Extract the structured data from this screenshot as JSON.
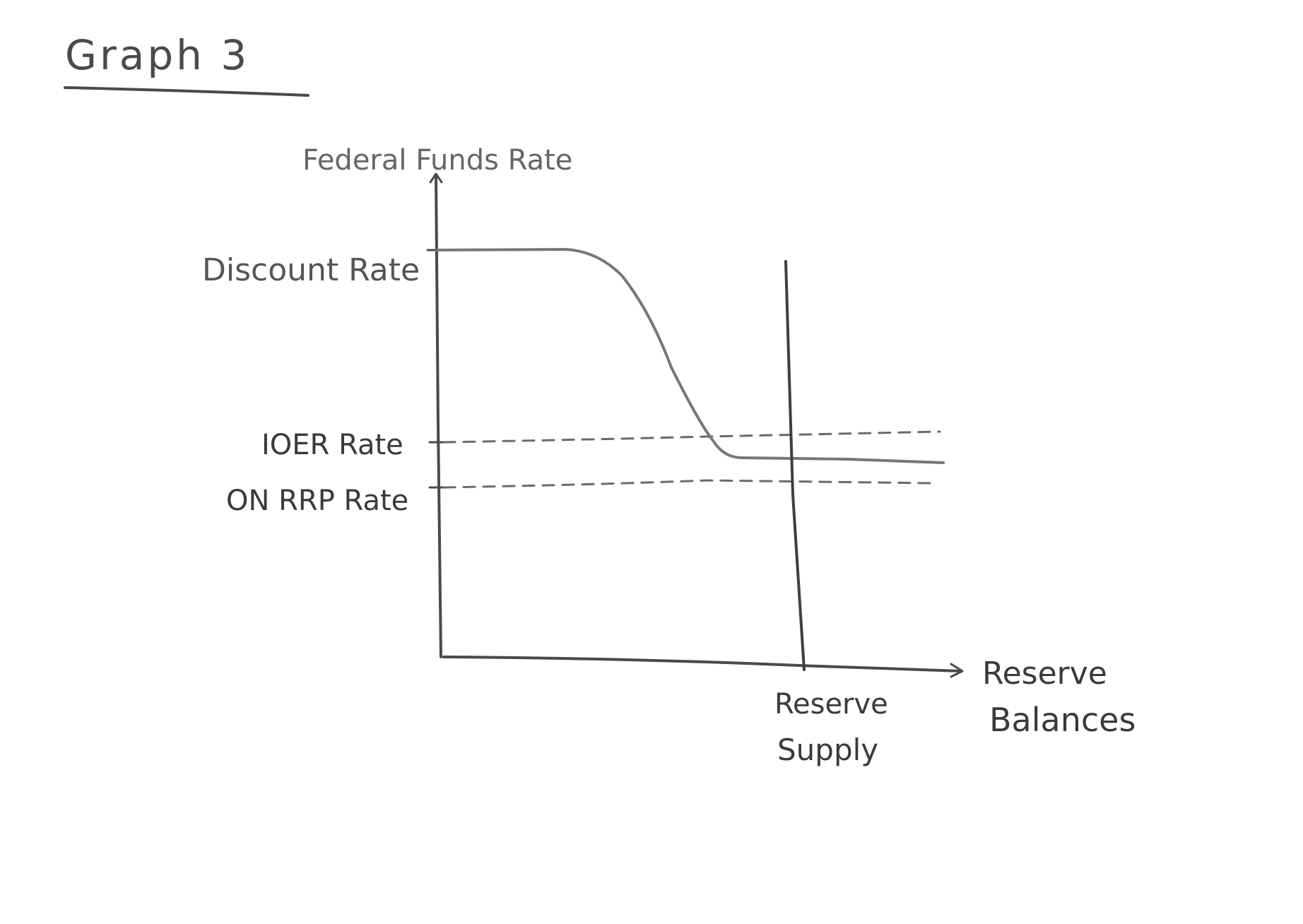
{
  "title": "Graph 3",
  "y_axis_label": "Federal Funds Rate",
  "x_axis_label_line1": "Reserve",
  "x_axis_label_line2": "Balances",
  "supply_label_line1": "Reserve",
  "supply_label_line2": "Supply",
  "levels": {
    "discount_rate": "Discount Rate",
    "ioer_rate": "IOER Rate",
    "on_rrp_rate": "ON RRP Rate"
  },
  "colors": {
    "ink": "#4a4a4a",
    "dash": "#6a6a6a"
  }
}
